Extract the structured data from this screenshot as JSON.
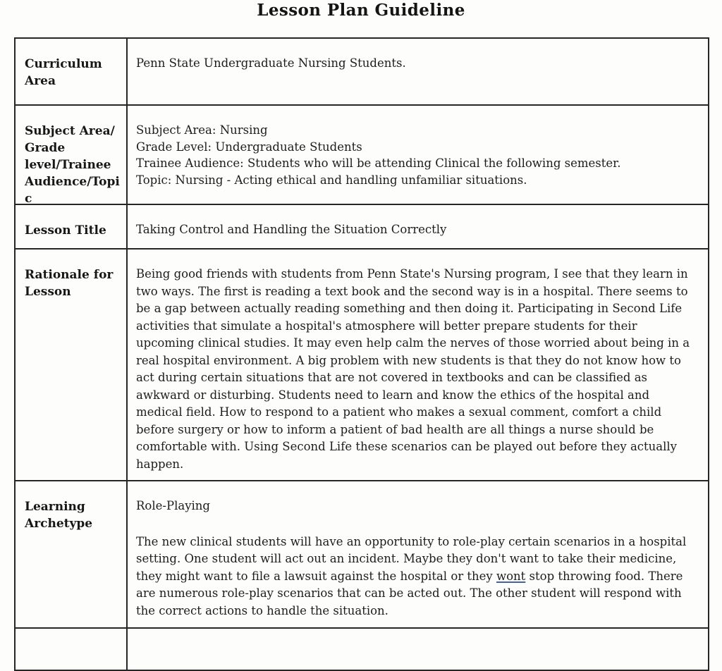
{
  "document": {
    "title": "Lesson Plan Guideline",
    "rows": {
      "curriculum": {
        "label_lines": [
          "Curriculum",
          "Area"
        ],
        "content": "Penn State Undergraduate Nursing Students."
      },
      "subject": {
        "label_lines": [
          "Subject Area/",
          "Grade",
          "level/Trainee",
          "Audience/Topi",
          "c"
        ],
        "content_lines": [
          "Subject Area: Nursing",
          "Grade Level: Undergraduate Students",
          "Trainee Audience:  Students who will be attending Clinical the following semester.",
          "Topic: Nursing - Acting ethical and handling unfamiliar situations."
        ]
      },
      "lesson_title": {
        "label_lines": [
          "Lesson Title"
        ],
        "content": "Taking Control and Handling the Situation Correctly"
      },
      "rationale": {
        "label_lines": [
          "Rationale for",
          "Lesson"
        ],
        "content": "Being good friends with students from Penn State's Nursing program, I see that they learn in two ways. The first is reading a text book and the second way is in a hospital. There seems to be a gap between actually reading something and then doing it. Participating in Second Life activities that simulate a hospital's atmosphere will better prepare students for their upcoming clinical studies. It may even help calm the nerves of those worried about being in a real hospital environment. A big problem with new students is that they do not know how to act during certain situations that are not covered in textbooks and can be classified as awkward or disturbing. Students need to learn and know the ethics of the hospital and medical field. How to respond to a patient who makes a sexual comment, comfort a child before surgery or how to inform a patient of bad health are all things a nurse should be comfortable with. Using Second Life these scenarios can be played out before they actually happen."
      },
      "archetype": {
        "label_lines": [
          "Learning",
          "Archetype"
        ],
        "intro": "Role-Playing",
        "para_before": "The new clinical students will have an opportunity to role-play certain scenarios in a hospital setting. One student will act out an incident. Maybe they don't want to take their medicine, they might want to file a lawsuit against the hospital or they ",
        "underlined_word": "wont",
        "para_after": " stop throwing food. There are numerous role-play scenarios that can be acted out. The other student will respond with the correct actions to handle the situation."
      }
    },
    "colors": {
      "border": "#262626",
      "text": "#1c1c1c",
      "spellcheck_underline": "#44639c",
      "background": "#fdfdfc"
    }
  }
}
